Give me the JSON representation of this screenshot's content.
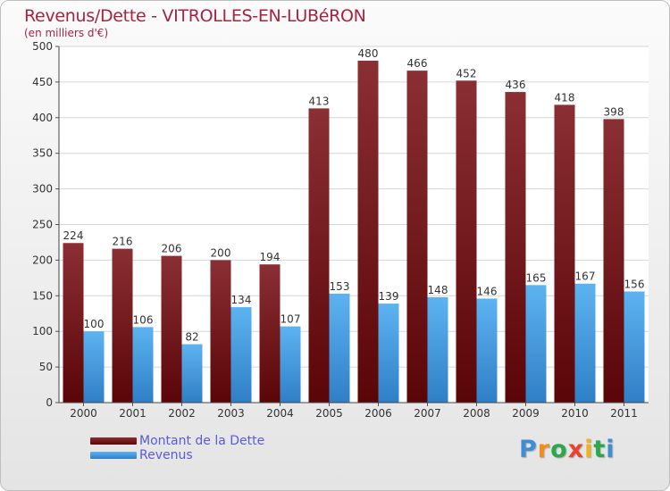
{
  "chart_data": {
    "type": "bar",
    "title": "Revenus/Dette - VITROLLES-EN-LUBéRON",
    "subtitle": "(en milliers d'€)",
    "categories": [
      "2000",
      "2001",
      "2002",
      "2003",
      "2004",
      "2005",
      "2006",
      "2007",
      "2008",
      "2009",
      "2010",
      "2011"
    ],
    "series": [
      {
        "name": "Montant de la Dette",
        "values": [
          224,
          216,
          206,
          200,
          194,
          413,
          480,
          466,
          452,
          436,
          418,
          398
        ],
        "color": "#7a1a1e"
      },
      {
        "name": "Revenus",
        "values": [
          100,
          106,
          82,
          134,
          107,
          153,
          139,
          148,
          146,
          165,
          167,
          156
        ],
        "color": "#4aa3e6"
      }
    ],
    "ylim": [
      0,
      500
    ],
    "yticks": [
      0,
      50,
      100,
      150,
      200,
      250,
      300,
      350,
      400,
      450,
      500
    ],
    "grid": true,
    "legend_position": "bottom-left",
    "data_labels": true
  },
  "logo": {
    "letters": [
      "P",
      "r",
      "o",
      "x",
      "i",
      "t",
      "i"
    ],
    "colors": [
      "#3e8ed6",
      "#f28c1c",
      "#2aa84a",
      "#e9442e",
      "#f2b21c",
      "#2aa84a",
      "#3e8ed6"
    ]
  }
}
